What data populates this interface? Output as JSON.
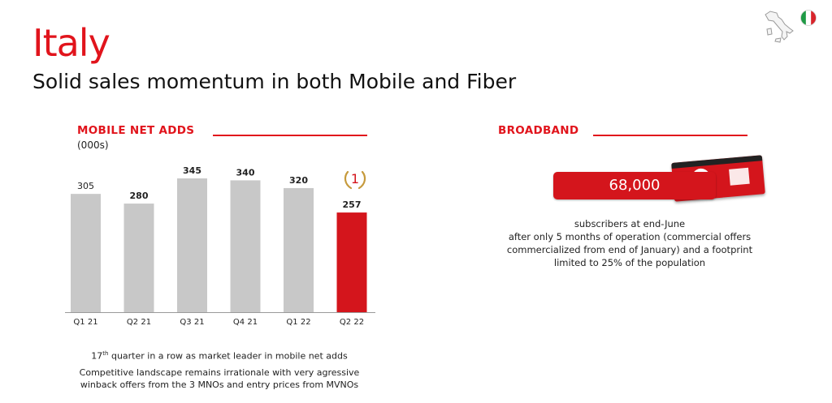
{
  "header": {
    "title": "Italy",
    "subtitle": "Solid sales momentum in both Mobile and Fiber"
  },
  "mobile": {
    "section_title": "MOBILE NET ADDS",
    "unit": "(000s)",
    "rank_badge": "1",
    "note1_pre": "17",
    "note1_sup": "th",
    "note1_post": " quarter in a row as market leader in mobile net adds",
    "note2_line1": "Competitive landscape remains irrationale with very agressive",
    "note2_line2": "winback offers from the 3 MNOs and entry prices from MVNOs"
  },
  "broadband": {
    "section_title": "BROADBAND",
    "subscribers_value": "68,000",
    "desc_lines": [
      "subscribers at end-June",
      "after only 5 months of operation (commercial offers",
      "commercialized from end of January) and a footprint",
      "limited to 25% of the population"
    ]
  },
  "colors": {
    "brand_red": "#e1141c",
    "bar_gray": "#c8c8c8",
    "bar_highlight": "#d4151c",
    "badge_gold": "#c69a3c"
  },
  "icons": [
    "italy-map-icon",
    "italy-flag-icon",
    "laurel-rank-icon"
  ],
  "chart_data": {
    "type": "bar",
    "categories": [
      "Q1 21",
      "Q2 21",
      "Q3 21",
      "Q4 21",
      "Q1 22",
      "Q2 22"
    ],
    "values": [
      305,
      280,
      345,
      340,
      320,
      257
    ],
    "highlight_index": 5,
    "title": "",
    "xlabel": "",
    "ylabel": "",
    "ylim": [
      0,
      350
    ],
    "grid": false,
    "legend": "none"
  }
}
